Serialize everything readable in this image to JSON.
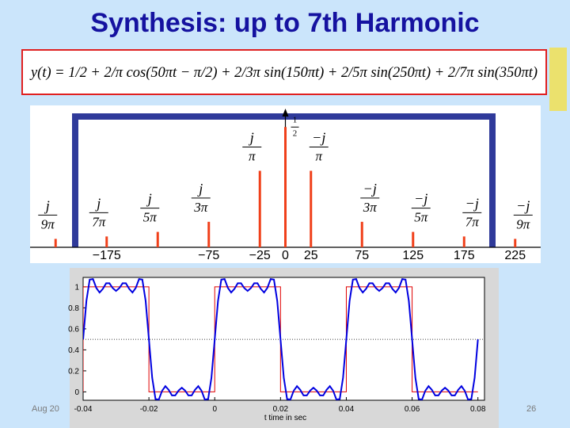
{
  "title": "Synthesis: up to 7th Harmonic",
  "formula": "y(t) = 1/2 + 2/π cos(50πt − π/2) + 2/3π sin(150πt) + 2/5π sin(250πt) + 2/7π sin(350πt)",
  "footer": {
    "date": "Aug 20",
    "page": "26"
  },
  "chart_data": [
    {
      "type": "stem",
      "color": "#f0401a",
      "x": [
        -225,
        -175,
        -125,
        -75,
        -25,
        0,
        25,
        75,
        125,
        175,
        225
      ],
      "values": [
        0.035,
        0.045,
        0.064,
        0.106,
        0.318,
        0.5,
        0.318,
        0.106,
        0.064,
        0.045,
        0.035
      ],
      "value_labels": [
        {
          "num": "j",
          "den": "9π"
        },
        {
          "num": "j",
          "den": "7π"
        },
        {
          "num": "j",
          "den": "5π"
        },
        {
          "num": "j",
          "den": "3π"
        },
        {
          "num": "j",
          "den": "π"
        },
        {
          "num": "1",
          "den": "2"
        },
        {
          "num": "−j",
          "den": "π"
        },
        {
          "num": "−j",
          "den": "3π"
        },
        {
          "num": "−j",
          "den": "5π"
        },
        {
          "num": "−j",
          "den": "7π"
        },
        {
          "num": "−j",
          "den": "9π"
        }
      ],
      "xlim": [
        -250,
        250
      ],
      "ylim": [
        0,
        0.59
      ],
      "xticks": [
        {
          "value": -175,
          "label": "−175"
        },
        {
          "value": -75,
          "label": "−75"
        },
        {
          "value": -25,
          "label": "−25"
        },
        0,
        25,
        75,
        125,
        175,
        225
      ]
    },
    {
      "type": "line",
      "xlabel": "t time in sec",
      "xlim": [
        -0.04,
        0.082
      ],
      "ylim": [
        -0.08,
        1.09
      ],
      "xticks": [
        -0.04,
        -0.02,
        0,
        0.02,
        0.04,
        0.06,
        0.08
      ],
      "yticks": [
        0,
        0.2,
        0.4,
        0.6,
        0.8,
        1
      ],
      "hline": 0.5,
      "series": [
        {
          "color": "#e00000",
          "x": [
            -0.04,
            -0.04,
            -0.02,
            -0.02,
            0,
            0,
            0.02,
            0.02,
            0.04,
            0.04,
            0.06,
            0.06,
            0.08
          ],
          "values": [
            0,
            1,
            1,
            0,
            0,
            1,
            1,
            0,
            0,
            1,
            1,
            0,
            0
          ]
        },
        {
          "color": "#0000e0",
          "x": [
            -0.04,
            -0.039,
            -0.038,
            -0.037,
            -0.036,
            -0.035,
            -0.034,
            -0.033,
            -0.032,
            -0.031,
            -0.03,
            -0.029,
            -0.028,
            -0.027,
            -0.026,
            -0.025,
            -0.024,
            -0.023,
            -0.022,
            -0.021,
            -0.02,
            -0.019,
            -0.018,
            -0.017,
            -0.016,
            -0.015,
            -0.014,
            -0.013,
            -0.012,
            -0.011,
            -0.01,
            -0.009,
            -0.008,
            -0.007,
            -0.006,
            -0.005,
            -0.004,
            -0.003,
            -0.002,
            -0.001,
            0,
            0.001,
            0.002,
            0.003,
            0.004,
            0.005,
            0.006,
            0.007,
            0.008,
            0.009,
            0.01,
            0.011,
            0.012,
            0.013,
            0.014,
            0.015,
            0.016,
            0.017,
            0.018,
            0.019,
            0.02,
            0.021,
            0.022,
            0.023,
            0.024,
            0.025,
            0.026,
            0.027,
            0.028,
            0.029,
            0.03,
            0.031,
            0.032,
            0.033,
            0.034,
            0.035,
            0.036,
            0.037,
            0.038,
            0.039,
            0.04,
            0.041,
            0.042,
            0.043,
            0.044,
            0.045,
            0.046,
            0.047,
            0.048,
            0.049,
            0.05,
            0.051,
            0.052,
            0.053,
            0.054,
            0.055,
            0.056,
            0.057,
            0.058,
            0.059,
            0.06,
            0.061,
            0.062,
            0.063,
            0.064,
            0.065,
            0.066,
            0.067,
            0.068,
            0.069,
            0.07,
            0.071,
            0.072,
            0.073,
            0.074,
            0.075,
            0.076,
            0.077,
            0.078,
            0.079,
            0.08
          ],
          "values": [
            0.5,
            0.867,
            1.069,
            1.074,
            0.99,
            0.946,
            0.981,
            1.034,
            1.034,
            0.988,
            0.961,
            0.988,
            1.034,
            1.034,
            0.981,
            0.946,
            0.99,
            1.074,
            1.069,
            0.867,
            0.5,
            0.133,
            -0.069,
            -0.074,
            0.01,
            0.054,
            0.019,
            -0.034,
            -0.034,
            0.012,
            0.039,
            0.012,
            -0.034,
            -0.034,
            0.019,
            0.054,
            0.01,
            -0.074,
            -0.069,
            0.133,
            0.5,
            0.867,
            1.069,
            1.074,
            0.99,
            0.946,
            0.981,
            1.034,
            1.034,
            0.988,
            0.961,
            0.988,
            1.034,
            1.034,
            0.981,
            0.946,
            0.99,
            1.074,
            1.069,
            0.867,
            0.5,
            0.133,
            -0.069,
            -0.074,
            0.01,
            0.054,
            0.019,
            -0.034,
            -0.034,
            0.012,
            0.039,
            0.012,
            -0.034,
            -0.034,
            0.019,
            0.054,
            0.01,
            -0.074,
            -0.069,
            0.133,
            0.5,
            0.867,
            1.069,
            1.074,
            0.99,
            0.946,
            0.981,
            1.034,
            1.034,
            0.988,
            0.961,
            0.988,
            1.034,
            1.034,
            0.981,
            0.946,
            0.99,
            1.074,
            1.069,
            0.867,
            0.5,
            0.133,
            -0.069,
            -0.074,
            0.01,
            0.054,
            0.019,
            -0.034,
            -0.034,
            0.012,
            0.039,
            0.012,
            -0.034,
            -0.034,
            0.019,
            0.054,
            0.01,
            -0.074,
            -0.069,
            0.133,
            0.5
          ]
        }
      ]
    }
  ]
}
